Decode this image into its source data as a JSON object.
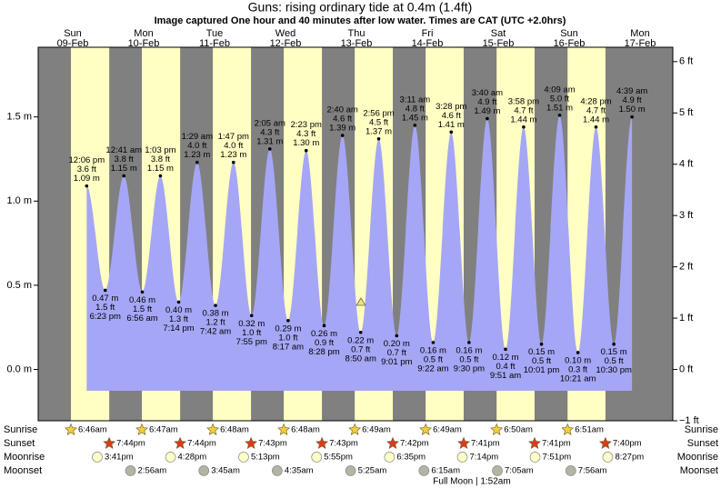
{
  "chart_data": {
    "type": "tide",
    "title": "Guns: rising  ordinary tide at 0.4m (1.4ft)",
    "subtitle": "Image captured One hour and 40 minutes after low water. Times are CAT (UTC +2.0hrs)",
    "ylim": [
      -0.305,
      1.914
    ],
    "yticks": [
      {
        "value": 0,
        "label": "0.0 m"
      },
      {
        "value": 0.5,
        "label": "0.5 m"
      },
      {
        "value": 1,
        "label": "1.0 m"
      },
      {
        "value": 1.5,
        "label": "1.5 m"
      }
    ],
    "y2lim": [
      -1,
      6.28
    ],
    "y2ticks": [
      {
        "value": -1,
        "label": "−1 ft"
      },
      {
        "value": 0,
        "label": "0 ft"
      },
      {
        "value": 1,
        "label": "1 ft"
      },
      {
        "value": 2,
        "label": "2 ft"
      },
      {
        "value": 3,
        "label": "3 ft"
      },
      {
        "value": 4,
        "label": "4 ft"
      },
      {
        "value": 5,
        "label": "5 ft"
      },
      {
        "value": 6,
        "label": "6 ft"
      }
    ],
    "days": [
      {
        "day": "Sun",
        "date": "09-Feb",
        "sunrise": "6:46am",
        "sunset": "7:44pm",
        "moonrise": "3:41pm",
        "moonset": null
      },
      {
        "day": "Mon",
        "date": "10-Feb",
        "sunrise": "6:47am",
        "sunset": "7:44pm",
        "moonrise": "4:28pm",
        "moonset": "2:56am"
      },
      {
        "day": "Tue",
        "date": "11-Feb",
        "sunrise": "6:48am",
        "sunset": "7:43pm",
        "moonrise": "5:13pm",
        "moonset": "3:45am"
      },
      {
        "day": "Wed",
        "date": "12-Feb",
        "sunrise": "6:48am",
        "sunset": "7:43pm",
        "moonrise": "5:55pm",
        "moonset": "4:35am"
      },
      {
        "day": "Thu",
        "date": "13-Feb",
        "sunrise": "6:49am",
        "sunset": "7:42pm",
        "moonrise": "6:35pm",
        "moonset": "5:25am"
      },
      {
        "day": "Fri",
        "date": "14-Feb",
        "sunrise": "6:49am",
        "sunset": "7:41pm",
        "moonrise": "7:14pm",
        "moonset": "6:15am"
      },
      {
        "day": "Sat",
        "date": "15-Feb",
        "sunrise": "6:50am",
        "sunset": "7:41pm",
        "moonrise": "7:51pm",
        "moonset": "7:05am"
      },
      {
        "day": "Sun",
        "date": "16-Feb",
        "sunrise": "6:51am",
        "sunset": "7:40pm",
        "moonrise": "8:27pm",
        "moonset": "7:56am"
      },
      {
        "day": "Mon",
        "date": "17-Feb",
        "sunrise": null,
        "sunset": null,
        "moonrise": null,
        "moonset": null
      }
    ],
    "tides": [
      {
        "time": "12:06 pm",
        "m": 1.09,
        "m_label": "1.09 m",
        "ft": 3.6,
        "ft_label": "3.6 ft"
      },
      {
        "time": "6:23 pm",
        "m": 0.47,
        "m_label": "0.47 m",
        "ft": 1.5,
        "ft_label": "1.5 ft"
      },
      {
        "time": "12:41 am",
        "m": 1.15,
        "m_label": "1.15 m",
        "ft": 3.8,
        "ft_label": "3.8 ft"
      },
      {
        "time": "6:56 am",
        "m": 0.46,
        "m_label": "0.46 m",
        "ft": 1.5,
        "ft_label": "1.5 ft"
      },
      {
        "time": "1:03 pm",
        "m": 1.15,
        "m_label": "1.15 m",
        "ft": 3.8,
        "ft_label": "3.8 ft"
      },
      {
        "time": "7:14 pm",
        "m": 0.4,
        "m_label": "0.40 m",
        "ft": 1.3,
        "ft_label": "1.3 ft"
      },
      {
        "time": "1:29 am",
        "m": 1.23,
        "m_label": "1.23 m",
        "ft": 4,
        "ft_label": "4.0 ft"
      },
      {
        "time": "7:42 am",
        "m": 0.38,
        "m_label": "0.38 m",
        "ft": 1.2,
        "ft_label": "1.2 ft"
      },
      {
        "time": "1:47 pm",
        "m": 1.23,
        "m_label": "1.23 m",
        "ft": 4,
        "ft_label": "4.0 ft"
      },
      {
        "time": "7:55 pm",
        "m": 0.32,
        "m_label": "0.32 m",
        "ft": 1,
        "ft_label": "1.0 ft"
      },
      {
        "time": "2:05 am",
        "m": 1.31,
        "m_label": "1.31 m",
        "ft": 4.3,
        "ft_label": "4.3 ft"
      },
      {
        "time": "8:17 am",
        "m": 0.29,
        "m_label": "0.29 m",
        "ft": 1,
        "ft_label": "1.0 ft"
      },
      {
        "time": "2:23 pm",
        "m": 1.3,
        "m_label": "1.30 m",
        "ft": 4.3,
        "ft_label": "4.3 ft"
      },
      {
        "time": "8:28 pm",
        "m": 0.26,
        "m_label": "0.26 m",
        "ft": 0.9,
        "ft_label": "0.9 ft"
      },
      {
        "time": "2:40 am",
        "m": 1.39,
        "m_label": "1.39 m",
        "ft": 4.6,
        "ft_label": "4.6 ft"
      },
      {
        "time": "8:50 am",
        "m": 0.22,
        "m_label": "0.22 m",
        "ft": 0.7,
        "ft_label": "0.7 ft"
      },
      {
        "time": "2:56 pm",
        "m": 1.37,
        "m_label": "1.37 m",
        "ft": 4.5,
        "ft_label": "4.5 ft"
      },
      {
        "time": "9:01 pm",
        "m": 0.2,
        "m_label": "0.20 m",
        "ft": 0.7,
        "ft_label": "0.7 ft"
      },
      {
        "time": "3:11 am",
        "m": 1.45,
        "m_label": "1.45 m",
        "ft": 4.8,
        "ft_label": "4.8 ft"
      },
      {
        "time": "9:22 am",
        "m": 0.16,
        "m_label": "0.16 m",
        "ft": 0.5,
        "ft_label": "0.5 ft"
      },
      {
        "time": "3:28 pm",
        "m": 1.41,
        "m_label": "1.41 m",
        "ft": 4.6,
        "ft_label": "4.6 ft"
      },
      {
        "time": "9:30 pm",
        "m": 0.16,
        "m_label": "0.16 m",
        "ft": 0.5,
        "ft_label": "0.5 ft"
      },
      {
        "time": "3:40 am",
        "m": 1.49,
        "m_label": "1.49 m",
        "ft": 4.9,
        "ft_label": "4.9 ft"
      },
      {
        "time": "9:51 am",
        "m": 0.12,
        "m_label": "0.12 m",
        "ft": 0.4,
        "ft_label": "0.4 ft"
      },
      {
        "time": "3:58 pm",
        "m": 1.44,
        "m_label": "1.44 m",
        "ft": 4.7,
        "ft_label": "4.7 ft"
      },
      {
        "time": "10:01 pm",
        "m": 0.15,
        "m_label": "0.15 m",
        "ft": 0.5,
        "ft_label": "0.5 ft"
      },
      {
        "time": "4:09 am",
        "m": 1.51,
        "m_label": "1.51 m",
        "ft": 5,
        "ft_label": "5.0 ft"
      },
      {
        "time": "10:21 am",
        "m": 0.1,
        "m_label": "0.10 m",
        "ft": 0.3,
        "ft_label": "0.3 ft"
      },
      {
        "time": "4:28 pm",
        "m": 1.44,
        "m_label": "1.44 m",
        "ft": 4.7,
        "ft_label": "4.7 ft"
      },
      {
        "time": "10:30 pm",
        "m": 0.15,
        "m_label": "0.15 m",
        "ft": 0.5,
        "ft_label": "0.5 ft"
      },
      {
        "time": "4:39 am",
        "m": 1.5,
        "m_label": "1.50 m",
        "ft": 4.9,
        "ft_label": "4.9 ft"
      }
    ],
    "row_labels": {
      "sunrise": "Sunrise",
      "sunset": "Sunset",
      "moonrise": "Moonrise",
      "moonset": "Moonset"
    },
    "moon_phase": "Full Moon | 1:52am",
    "colors": {
      "night": "#808080",
      "day": "#ffffc4",
      "water": "#a6a6f6",
      "date": "#e00000",
      "sunrise": "#f2cf3a",
      "sunset": "#dd3a1e",
      "moonrise": "#ffffc8",
      "moonset": "#b4b4a4"
    }
  }
}
